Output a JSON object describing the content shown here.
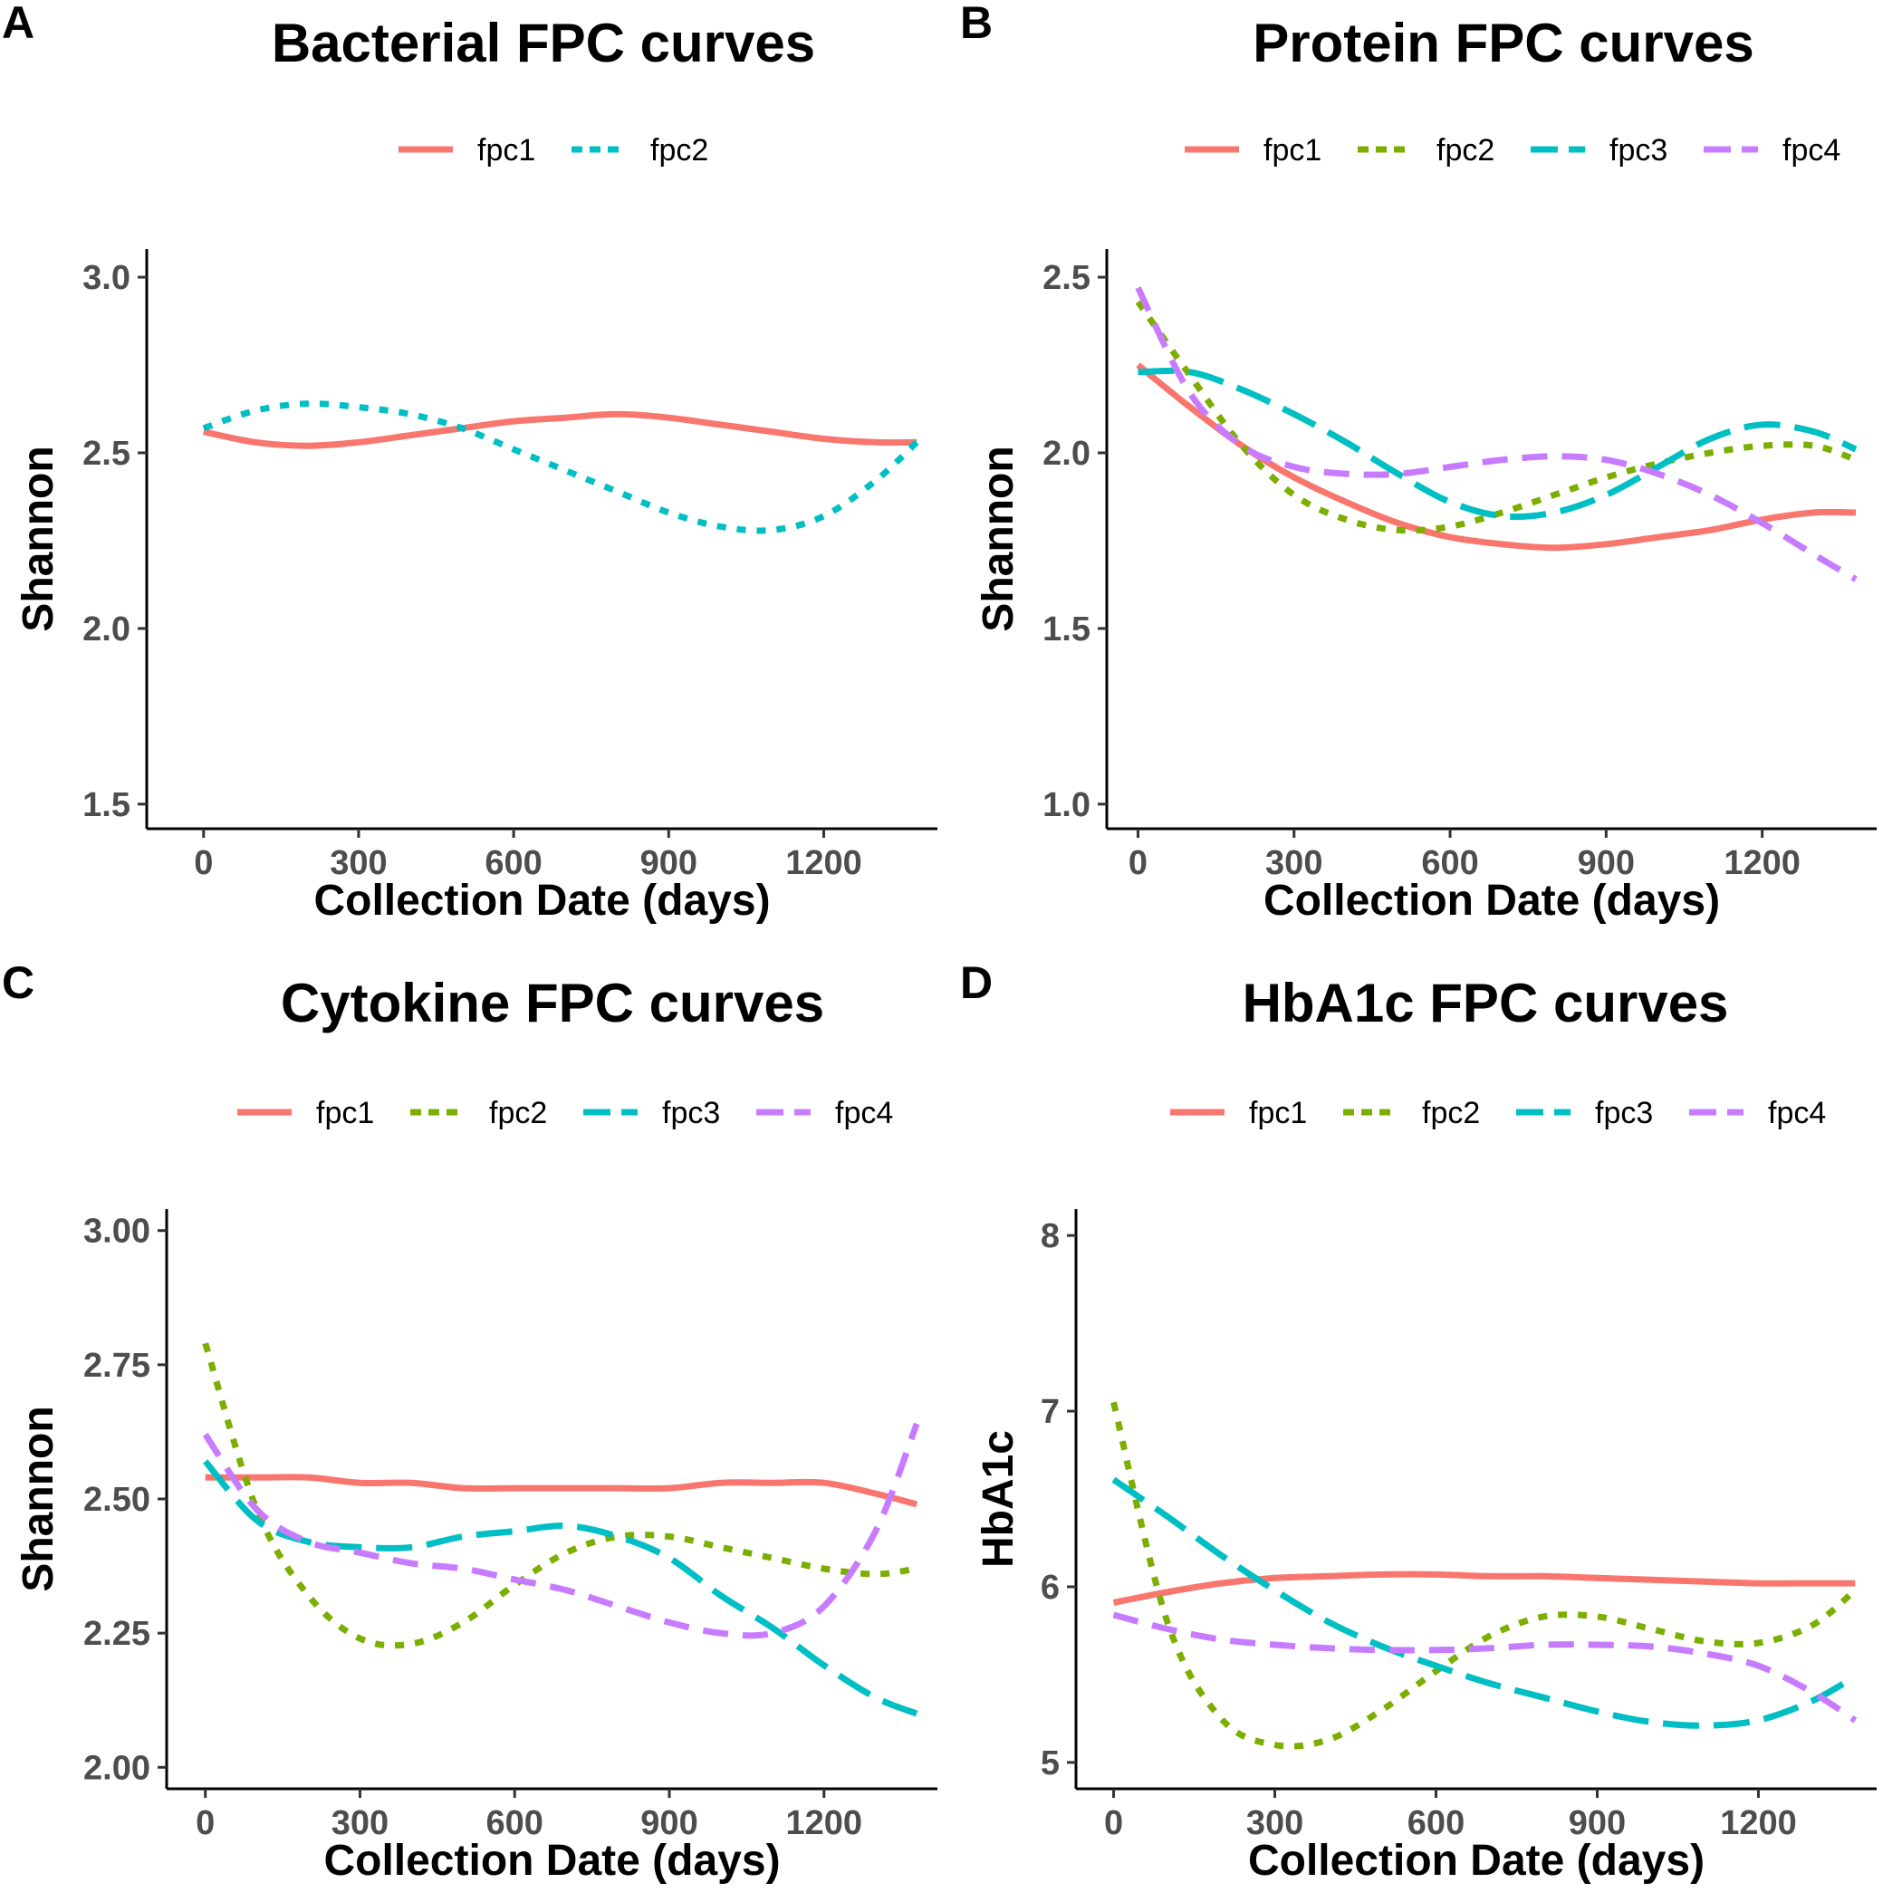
{
  "chart_data": [
    {
      "panel": "A",
      "type": "line",
      "title": "Bacterial FPC curves",
      "xlabel": "Collection Date (days)",
      "ylabel": "Shannon",
      "xlim": [
        -110,
        1420
      ],
      "ylim": [
        1.43,
        3.08
      ],
      "xticks": [
        0,
        300,
        600,
        900,
        1200
      ],
      "yticks": [
        1.5,
        2.0,
        2.5,
        3.0
      ],
      "xtick_labels": [
        "0",
        "300",
        "600",
        "900",
        "1200"
      ],
      "ytick_labels": [
        "1.5",
        "2.0",
        "2.5",
        "3.0"
      ],
      "grid": false,
      "legend_position": "top",
      "series": [
        {
          "name": "fpc1",
          "color": "#F8766D",
          "dash": "solid",
          "x": [
            0,
            100,
            200,
            300,
            400,
            500,
            600,
            700,
            800,
            900,
            1000,
            1100,
            1200,
            1300,
            1380
          ],
          "y": [
            2.56,
            2.53,
            2.52,
            2.53,
            2.55,
            2.57,
            2.59,
            2.6,
            2.61,
            2.6,
            2.58,
            2.56,
            2.54,
            2.53,
            2.53
          ]
        },
        {
          "name": "fpc2",
          "color": "#00BFC4",
          "dash": "dotted",
          "x": [
            0,
            100,
            200,
            300,
            400,
            500,
            600,
            700,
            800,
            900,
            1000,
            1100,
            1200,
            1300,
            1380
          ],
          "y": [
            2.57,
            2.62,
            2.64,
            2.63,
            2.61,
            2.57,
            2.51,
            2.45,
            2.39,
            2.33,
            2.29,
            2.28,
            2.32,
            2.42,
            2.53
          ]
        }
      ]
    },
    {
      "panel": "B",
      "type": "line",
      "title": "Protein FPC curves",
      "xlabel": "Collection Date (days)",
      "ylabel": "Shannon",
      "xlim": [
        -60,
        1420
      ],
      "ylim": [
        0.93,
        2.58
      ],
      "xticks": [
        0,
        300,
        600,
        900,
        1200
      ],
      "yticks": [
        1.0,
        1.5,
        2.0,
        2.5
      ],
      "xtick_labels": [
        "0",
        "300",
        "600",
        "900",
        "1200"
      ],
      "ytick_labels": [
        "1.0",
        "1.5",
        "2.0",
        "2.5"
      ],
      "grid": false,
      "legend_position": "top",
      "series": [
        {
          "name": "fpc1",
          "color": "#F8766D",
          "dash": "solid",
          "x": [
            0,
            100,
            200,
            300,
            400,
            500,
            600,
            700,
            800,
            900,
            1000,
            1100,
            1200,
            1300,
            1380
          ],
          "y": [
            2.25,
            2.13,
            2.02,
            1.93,
            1.86,
            1.8,
            1.76,
            1.74,
            1.73,
            1.74,
            1.76,
            1.78,
            1.81,
            1.83,
            1.83
          ]
        },
        {
          "name": "fpc2",
          "color": "#7CAE00",
          "dash": "dotted",
          "x": [
            0,
            100,
            200,
            300,
            400,
            500,
            600,
            700,
            800,
            900,
            1000,
            1100,
            1200,
            1300,
            1380
          ],
          "y": [
            2.43,
            2.22,
            2.02,
            1.88,
            1.81,
            1.78,
            1.79,
            1.83,
            1.88,
            1.93,
            1.97,
            2.0,
            2.02,
            2.02,
            1.98
          ]
        },
        {
          "name": "fpc3",
          "color": "#00BFC4",
          "dash": "longdash",
          "x": [
            0,
            100,
            200,
            300,
            400,
            500,
            600,
            700,
            800,
            900,
            1000,
            1100,
            1200,
            1300,
            1380
          ],
          "y": [
            2.23,
            2.23,
            2.18,
            2.11,
            2.03,
            1.94,
            1.86,
            1.82,
            1.83,
            1.88,
            1.96,
            2.04,
            2.08,
            2.06,
            2.01
          ]
        },
        {
          "name": "fpc4",
          "color": "#C77CFF",
          "dash": "dashed",
          "x": [
            0,
            100,
            200,
            300,
            400,
            500,
            600,
            700,
            800,
            900,
            1000,
            1100,
            1200,
            1300,
            1380
          ],
          "y": [
            2.47,
            2.17,
            2.02,
            1.96,
            1.94,
            1.94,
            1.96,
            1.98,
            1.99,
            1.98,
            1.94,
            1.88,
            1.8,
            1.71,
            1.64
          ]
        }
      ]
    },
    {
      "panel": "C",
      "type": "line",
      "title": "Cytokine FPC curves",
      "xlabel": "Collection Date (days)",
      "ylabel": "Shannon",
      "xlim": [
        -75,
        1420
      ],
      "ylim": [
        1.96,
        3.04
      ],
      "xticks": [
        0,
        300,
        600,
        900,
        1200
      ],
      "yticks": [
        2.0,
        2.25,
        2.5,
        2.75,
        3.0
      ],
      "xtick_labels": [
        "0",
        "300",
        "600",
        "900",
        "1200"
      ],
      "ytick_labels": [
        "2.00",
        "2.25",
        "2.50",
        "2.75",
        "3.00"
      ],
      "grid": false,
      "legend_position": "top",
      "series": [
        {
          "name": "fpc1",
          "color": "#F8766D",
          "dash": "solid",
          "x": [
            0,
            100,
            200,
            300,
            400,
            500,
            600,
            700,
            800,
            900,
            1000,
            1100,
            1200,
            1300,
            1380
          ],
          "y": [
            2.54,
            2.54,
            2.54,
            2.53,
            2.53,
            2.52,
            2.52,
            2.52,
            2.52,
            2.52,
            2.53,
            2.53,
            2.53,
            2.51,
            2.49
          ]
        },
        {
          "name": "fpc2",
          "color": "#7CAE00",
          "dash": "dotted",
          "x": [
            0,
            100,
            200,
            300,
            400,
            500,
            600,
            700,
            800,
            900,
            1000,
            1100,
            1200,
            1300,
            1380
          ],
          "y": [
            2.79,
            2.48,
            2.32,
            2.24,
            2.23,
            2.27,
            2.34,
            2.4,
            2.43,
            2.43,
            2.41,
            2.39,
            2.37,
            2.36,
            2.37
          ]
        },
        {
          "name": "fpc3",
          "color": "#00BFC4",
          "dash": "longdash",
          "x": [
            0,
            100,
            200,
            300,
            400,
            500,
            600,
            700,
            800,
            900,
            1000,
            1100,
            1200,
            1300,
            1380
          ],
          "y": [
            2.57,
            2.46,
            2.42,
            2.41,
            2.41,
            2.43,
            2.44,
            2.45,
            2.43,
            2.39,
            2.32,
            2.26,
            2.19,
            2.13,
            2.1
          ]
        },
        {
          "name": "fpc4",
          "color": "#C77CFF",
          "dash": "dashed",
          "x": [
            0,
            100,
            200,
            300,
            400,
            500,
            600,
            700,
            800,
            900,
            1000,
            1100,
            1200,
            1300,
            1380
          ],
          "y": [
            2.62,
            2.48,
            2.42,
            2.4,
            2.38,
            2.37,
            2.35,
            2.33,
            2.3,
            2.27,
            2.25,
            2.25,
            2.3,
            2.44,
            2.64
          ]
        }
      ]
    },
    {
      "panel": "D",
      "type": "line",
      "title": "HbA1c FPC curves",
      "xlabel": "Collection Date (days)",
      "ylabel": "HbA1c",
      "xlim": [
        -70,
        1420
      ],
      "ylim": [
        4.85,
        8.15
      ],
      "xticks": [
        0,
        300,
        600,
        900,
        1200
      ],
      "yticks": [
        5,
        6,
        7,
        8
      ],
      "xtick_labels": [
        "0",
        "300",
        "600",
        "900",
        "1200"
      ],
      "ytick_labels": [
        "5",
        "6",
        "7",
        "8"
      ],
      "grid": false,
      "legend_position": "top",
      "series": [
        {
          "name": "fpc1",
          "color": "#F8766D",
          "dash": "solid",
          "x": [
            0,
            100,
            200,
            300,
            400,
            500,
            600,
            700,
            800,
            900,
            1000,
            1100,
            1200,
            1300,
            1380
          ],
          "y": [
            5.91,
            5.97,
            6.02,
            6.05,
            6.06,
            6.07,
            6.07,
            6.06,
            6.06,
            6.05,
            6.04,
            6.03,
            6.02,
            6.02,
            6.02
          ]
        },
        {
          "name": "fpc2",
          "color": "#7CAE00",
          "dash": "dotted",
          "x": [
            0,
            100,
            200,
            300,
            400,
            500,
            600,
            700,
            800,
            900,
            1000,
            1100,
            1200,
            1300,
            1380
          ],
          "y": [
            7.05,
            5.8,
            5.25,
            5.1,
            5.13,
            5.3,
            5.52,
            5.72,
            5.83,
            5.83,
            5.76,
            5.69,
            5.68,
            5.78,
            5.98
          ]
        },
        {
          "name": "fpc3",
          "color": "#00BFC4",
          "dash": "longdash",
          "x": [
            0,
            100,
            200,
            300,
            400,
            500,
            600,
            700,
            800,
            900,
            1000,
            1100,
            1200,
            1300,
            1380
          ],
          "y": [
            6.61,
            6.4,
            6.18,
            5.98,
            5.8,
            5.66,
            5.55,
            5.45,
            5.37,
            5.29,
            5.23,
            5.21,
            5.24,
            5.35,
            5.49
          ]
        },
        {
          "name": "fpc4",
          "color": "#C77CFF",
          "dash": "dashed",
          "x": [
            0,
            100,
            200,
            300,
            400,
            500,
            600,
            700,
            800,
            900,
            1000,
            1100,
            1200,
            1300,
            1380
          ],
          "y": [
            5.84,
            5.76,
            5.7,
            5.67,
            5.65,
            5.64,
            5.64,
            5.65,
            5.67,
            5.67,
            5.66,
            5.62,
            5.55,
            5.4,
            5.24
          ]
        }
      ]
    }
  ]
}
